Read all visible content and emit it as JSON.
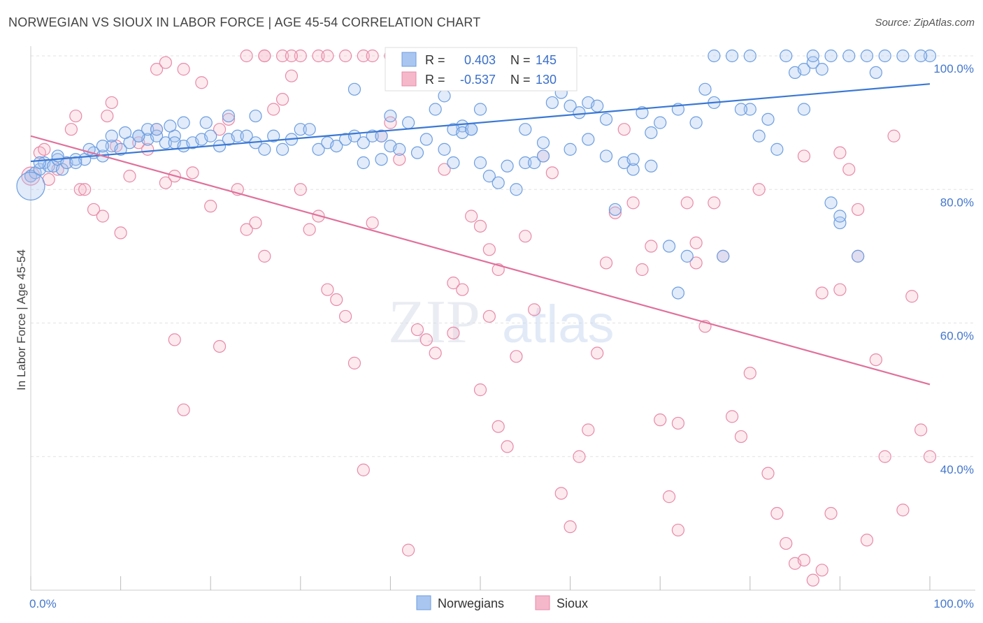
{
  "title": "NORWEGIAN VS SIOUX IN LABOR FORCE | AGE 45-54 CORRELATION CHART",
  "source": "Source: ZipAtlas.com",
  "watermark": {
    "zip": "ZIP",
    "atlas": "atlas"
  },
  "legend": {
    "rows": [
      {
        "r_label": "R = ",
        "r_value": "0.403",
        "n_label": "N = ",
        "n_value": "145",
        "color": "#a9c6f0",
        "stroke": "#6d9ee0"
      },
      {
        "r_label": "R = ",
        "r_value": "-0.537",
        "n_label": "N = ",
        "n_value": "130",
        "color": "#f5b8cb",
        "stroke": "#e88aa8"
      }
    ]
  },
  "bottom_legend": [
    {
      "label": "Norwegians",
      "color": "#a9c6f0",
      "stroke": "#6d9ee0"
    },
    {
      "label": "Sioux",
      "color": "#f5b8cb",
      "stroke": "#e88aa8"
    }
  ],
  "chart_data": {
    "type": "scatter",
    "ylabel": "In Labor Force | Age 45-54",
    "xlim": [
      0,
      100
    ],
    "ylim": [
      20,
      100
    ],
    "x_tick_labels": [
      "0.0%",
      "100.0%"
    ],
    "y_ticks": [
      {
        "value": 100,
        "label": "100.0%"
      },
      {
        "value": 80,
        "label": "80.0%"
      },
      {
        "value": 60,
        "label": "60.0%"
      },
      {
        "value": 40,
        "label": "40.0%"
      }
    ],
    "colors": {
      "norwegians": "#3a78d4",
      "sioux": "#e0709a"
    },
    "series": [
      {
        "name": "Norwegians",
        "trend": {
          "x": [
            0,
            100
          ],
          "y": [
            84.2,
            95.8
          ]
        },
        "points": [
          [
            0,
            82
          ],
          [
            0.5,
            82.5
          ],
          [
            1,
            83
          ],
          [
            1.5,
            84
          ],
          [
            2,
            83.5
          ],
          [
            2.5,
            83.5
          ],
          [
            3,
            84.5
          ],
          [
            3.5,
            83
          ],
          [
            4,
            84
          ],
          [
            5,
            84.5
          ],
          [
            6,
            84.5
          ],
          [
            7,
            85.5
          ],
          [
            8,
            85
          ],
          [
            9,
            86.5
          ],
          [
            10,
            86
          ],
          [
            11,
            87
          ],
          [
            12,
            88
          ],
          [
            13,
            87.5
          ],
          [
            14,
            88
          ],
          [
            15,
            87
          ],
          [
            16,
            88
          ],
          [
            1,
            84
          ],
          [
            3,
            85
          ],
          [
            5,
            84
          ],
          [
            6.5,
            86
          ],
          [
            8,
            86.5
          ],
          [
            9,
            88
          ],
          [
            10.5,
            88.5
          ],
          [
            12,
            88
          ],
          [
            13,
            89
          ],
          [
            14,
            89
          ],
          [
            15.5,
            89.5
          ],
          [
            16,
            87
          ],
          [
            17,
            86.5
          ],
          [
            18,
            87
          ],
          [
            19,
            87.5
          ],
          [
            20,
            88
          ],
          [
            21,
            86.5
          ],
          [
            22,
            87.5
          ],
          [
            23,
            88
          ],
          [
            24,
            88
          ],
          [
            25,
            87
          ],
          [
            17,
            90
          ],
          [
            19.5,
            90
          ],
          [
            22,
            91
          ],
          [
            25,
            91
          ],
          [
            26,
            86
          ],
          [
            27,
            88
          ],
          [
            28,
            86
          ],
          [
            29,
            87.5
          ],
          [
            30,
            89
          ],
          [
            31,
            89
          ],
          [
            32,
            86
          ],
          [
            33,
            87
          ],
          [
            34,
            86.5
          ],
          [
            35,
            87.5
          ],
          [
            36,
            88
          ],
          [
            37,
            87
          ],
          [
            38,
            88
          ],
          [
            39,
            88
          ],
          [
            40,
            86.5
          ],
          [
            41,
            86
          ],
          [
            36,
            95
          ],
          [
            40,
            91
          ],
          [
            42,
            90
          ],
          [
            45,
            92
          ],
          [
            46,
            86
          ],
          [
            47,
            84
          ],
          [
            48,
            89.5
          ],
          [
            49,
            89
          ],
          [
            50,
            84
          ],
          [
            51,
            82
          ],
          [
            52,
            81
          ],
          [
            53,
            83.5
          ],
          [
            54,
            80
          ],
          [
            55,
            84
          ],
          [
            56,
            84
          ],
          [
            57,
            85
          ],
          [
            58,
            93
          ],
          [
            59,
            94.5
          ],
          [
            60,
            92.5
          ],
          [
            61,
            91.5
          ],
          [
            37,
            84
          ],
          [
            39,
            84.5
          ],
          [
            43,
            85.5
          ],
          [
            44,
            87.5
          ],
          [
            46,
            94
          ],
          [
            47,
            89
          ],
          [
            48,
            88.5
          ],
          [
            49,
            89
          ],
          [
            50,
            92
          ],
          [
            55,
            89
          ],
          [
            57,
            87
          ],
          [
            60,
            86
          ],
          [
            62,
            93
          ],
          [
            63,
            92.5
          ],
          [
            64,
            90.5
          ],
          [
            64,
            85
          ],
          [
            67,
            83
          ],
          [
            68,
            91.5
          ],
          [
            69,
            88.5
          ],
          [
            70,
            90
          ],
          [
            62,
            87.5
          ],
          [
            65,
            77
          ],
          [
            66,
            84
          ],
          [
            67,
            84.5
          ],
          [
            69,
            83.5
          ],
          [
            71,
            71.5
          ],
          [
            72,
            64.5
          ],
          [
            73,
            70
          ],
          [
            74,
            90
          ],
          [
            75,
            95
          ],
          [
            77,
            70
          ],
          [
            80,
            92
          ],
          [
            82,
            90.5
          ],
          [
            83,
            86
          ],
          [
            85,
            97.5
          ],
          [
            86,
            98
          ],
          [
            87,
            99
          ],
          [
            88,
            98
          ],
          [
            89,
            78
          ],
          [
            90,
            75
          ],
          [
            76,
            100
          ],
          [
            78,
            100
          ],
          [
            80,
            100
          ],
          [
            84,
            100
          ],
          [
            87,
            100
          ],
          [
            89,
            100
          ],
          [
            91,
            100
          ],
          [
            93,
            100
          ],
          [
            95,
            100
          ],
          [
            97,
            100
          ],
          [
            100,
            100
          ],
          [
            99,
            100
          ],
          [
            72,
            92
          ],
          [
            76,
            93
          ],
          [
            79,
            92
          ],
          [
            81,
            88
          ],
          [
            86,
            92
          ],
          [
            90,
            76
          ],
          [
            92,
            70
          ],
          [
            94,
            97.5
          ]
        ]
      },
      {
        "name": "Sioux",
        "trend": {
          "x": [
            0,
            100
          ],
          "y": [
            88,
            50.8
          ]
        },
        "points": [
          [
            0,
            82
          ],
          [
            1,
            85.5
          ],
          [
            1.5,
            86
          ],
          [
            2,
            81.5
          ],
          [
            3,
            83
          ],
          [
            4,
            84
          ],
          [
            4.5,
            89
          ],
          [
            5,
            91
          ],
          [
            5.5,
            80
          ],
          [
            6,
            80
          ],
          [
            7,
            77
          ],
          [
            8,
            76
          ],
          [
            8.5,
            91
          ],
          [
            9,
            93
          ],
          [
            9.5,
            86.5
          ],
          [
            10,
            73.5
          ],
          [
            11,
            82
          ],
          [
            12,
            87
          ],
          [
            13,
            86
          ],
          [
            14,
            89
          ],
          [
            15,
            81
          ],
          [
            14,
            98
          ],
          [
            15,
            99
          ],
          [
            16,
            82
          ],
          [
            17,
            98
          ],
          [
            18,
            82.5
          ],
          [
            19,
            96
          ],
          [
            20,
            77.5
          ],
          [
            21,
            89
          ],
          [
            22,
            90.5
          ],
          [
            23,
            80
          ],
          [
            24,
            74
          ],
          [
            25,
            75
          ],
          [
            26,
            70
          ],
          [
            27,
            92
          ],
          [
            28,
            93.5
          ],
          [
            29,
            97
          ],
          [
            30,
            80
          ],
          [
            31,
            74
          ],
          [
            32,
            76
          ],
          [
            33,
            65
          ],
          [
            16,
            57.5
          ],
          [
            17,
            47
          ],
          [
            21,
            56.5
          ],
          [
            26,
            100
          ],
          [
            28,
            100
          ],
          [
            30,
            100
          ],
          [
            32,
            100
          ],
          [
            35,
            100
          ],
          [
            37,
            100
          ],
          [
            38,
            100
          ],
          [
            40,
            100
          ],
          [
            42,
            100
          ],
          [
            44,
            100
          ],
          [
            45,
            100
          ],
          [
            47,
            100
          ],
          [
            48,
            100
          ],
          [
            24,
            100
          ],
          [
            26,
            100
          ],
          [
            29,
            100
          ],
          [
            33,
            100
          ],
          [
            34,
            63.5
          ],
          [
            35,
            61
          ],
          [
            36,
            54
          ],
          [
            37,
            38
          ],
          [
            38,
            75
          ],
          [
            39,
            88
          ],
          [
            40,
            90
          ],
          [
            41,
            84.5
          ],
          [
            42,
            26
          ],
          [
            43,
            59
          ],
          [
            44,
            57.5
          ],
          [
            45,
            55.5
          ],
          [
            46,
            83
          ],
          [
            47,
            66
          ],
          [
            48,
            65
          ],
          [
            49,
            76
          ],
          [
            50,
            74.5
          ],
          [
            51,
            71
          ],
          [
            52,
            44.5
          ],
          [
            53,
            41.5
          ],
          [
            47,
            58.5
          ],
          [
            50,
            50
          ],
          [
            51,
            61
          ],
          [
            52,
            68
          ],
          [
            54,
            55
          ],
          [
            55,
            73
          ],
          [
            56,
            62
          ],
          [
            57,
            85
          ],
          [
            58,
            82.5
          ],
          [
            59,
            34.5
          ],
          [
            60,
            29.5
          ],
          [
            61,
            40
          ],
          [
            62,
            44
          ],
          [
            63,
            55.5
          ],
          [
            64,
            69
          ],
          [
            65,
            76.5
          ],
          [
            66,
            89
          ],
          [
            67,
            78
          ],
          [
            68,
            68
          ],
          [
            69,
            71.5
          ],
          [
            70,
            45.5
          ],
          [
            71,
            34
          ],
          [
            72,
            45
          ],
          [
            73,
            78
          ],
          [
            74,
            72
          ],
          [
            75,
            59.5
          ],
          [
            76,
            78
          ],
          [
            77,
            70
          ],
          [
            78,
            46
          ],
          [
            79,
            43
          ],
          [
            80,
            52.5
          ],
          [
            81,
            80
          ],
          [
            82,
            37.5
          ],
          [
            83,
            31.5
          ],
          [
            84,
            27
          ],
          [
            85,
            24
          ],
          [
            86,
            24.5
          ],
          [
            87,
            21.5
          ],
          [
            88,
            23
          ],
          [
            89,
            31.5
          ],
          [
            90,
            65
          ],
          [
            91,
            83
          ],
          [
            92,
            77
          ],
          [
            93,
            27.5
          ],
          [
            94,
            54.5
          ],
          [
            95,
            40
          ],
          [
            96,
            88
          ],
          [
            97,
            32
          ],
          [
            98,
            64
          ],
          [
            99,
            44
          ],
          [
            100,
            40
          ],
          [
            86,
            85
          ],
          [
            88,
            64.5
          ],
          [
            90,
            85.5
          ],
          [
            92,
            70
          ],
          [
            74,
            69
          ],
          [
            72,
            29
          ]
        ]
      }
    ]
  }
}
